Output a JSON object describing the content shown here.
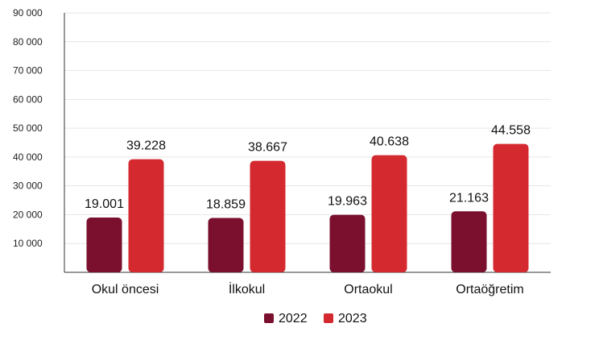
{
  "chart_data": {
    "type": "bar",
    "categories": [
      "Okul öncesi",
      "İlkokul",
      "Ortaokul",
      "Ortaöğretim"
    ],
    "series": [
      {
        "name": "2022",
        "values": [
          19001,
          18859,
          19963,
          21163
        ],
        "labels": [
          "19.001",
          "18.859",
          "19.963",
          "21.163"
        ],
        "color": "#7a0f2e"
      },
      {
        "name": "2023",
        "values": [
          39228,
          38667,
          40638,
          44558
        ],
        "labels": [
          "39.228",
          "38.667",
          "40.638",
          "44.558"
        ],
        "color": "#d42a2f"
      }
    ],
    "yticks": [
      10000,
      20000,
      30000,
      40000,
      50000,
      60000,
      70000,
      80000,
      90000
    ],
    "ytick_labels": [
      "10 000",
      "20 000",
      "30 000",
      "40 000",
      "50 000",
      "60 000",
      "70 000",
      "80 000",
      "90 000"
    ],
    "ylim": [
      0,
      90000
    ],
    "grid": true,
    "legend_position": "bottom-center"
  }
}
